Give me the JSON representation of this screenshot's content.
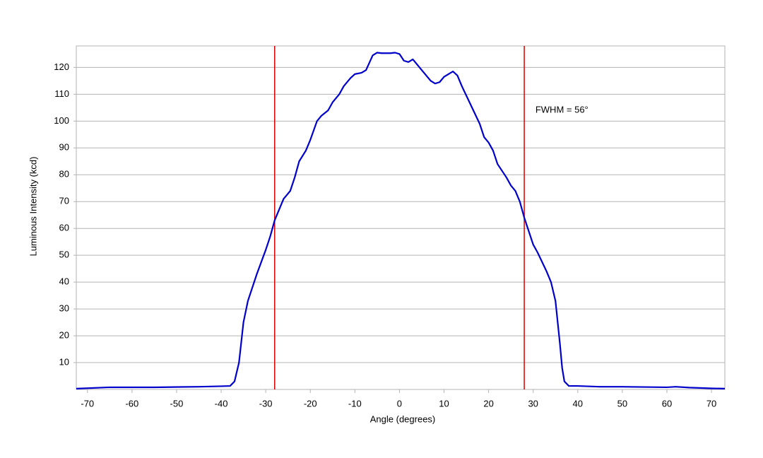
{
  "chart_data": {
    "type": "line",
    "xlabel": "Angle (degrees)",
    "ylabel": "Luminous Intensity (kcd)",
    "x": [
      -72.5,
      -65,
      -55,
      -45,
      -40,
      -38,
      -37,
      -36,
      -35,
      -34,
      -32,
      -30,
      -29,
      -28,
      -27,
      -26,
      -24.5,
      -23.5,
      -22.5,
      -21,
      -20,
      -18.5,
      -17.5,
      -16,
      -15,
      -13.5,
      -12.5,
      -11,
      -10,
      -8.5,
      -7.5,
      -6,
      -5,
      -4,
      -2,
      -1,
      0,
      1,
      2,
      3,
      4,
      5,
      7,
      8,
      9,
      10,
      12,
      13,
      14,
      16,
      18,
      19,
      20,
      21,
      22,
      24,
      25,
      26,
      27,
      28,
      29,
      30,
      31,
      33,
      34,
      35,
      36,
      36.5,
      37,
      38,
      40,
      45,
      50,
      60,
      62,
      65,
      70,
      73
    ],
    "series": [
      {
        "name": "Luminous Intensity",
        "color": "#0000cc",
        "values": [
          0.3,
          0.8,
          0.8,
          1,
          1.2,
          1.3,
          3,
          10,
          25,
          33,
          43,
          52,
          57,
          63,
          67,
          71,
          74,
          79,
          85,
          89,
          93,
          100,
          102,
          104,
          107,
          110,
          113,
          116,
          117.5,
          118,
          119,
          124.5,
          125.5,
          125.3,
          125.3,
          125.5,
          125,
          122.5,
          122,
          123,
          121,
          119,
          115,
          114,
          114.5,
          116.5,
          118.5,
          117,
          113,
          106,
          99,
          94,
          92,
          89,
          84,
          79,
          76,
          74,
          70,
          64,
          59,
          54,
          51,
          44,
          40,
          33,
          17,
          8,
          3,
          1.3,
          1.3,
          1,
          1,
          0.8,
          1,
          0.7,
          0.4,
          0.3
        ]
      }
    ],
    "vlines": [
      -28,
      28
    ],
    "vline_color": "#dd0000",
    "annotation": {
      "text": "FWHM = 56°",
      "x": 30.5,
      "y": 104
    },
    "xlim": [
      -72.5,
      73
    ],
    "xticks": [
      -70,
      -60,
      -50,
      -40,
      -30,
      -20,
      -10,
      0,
      10,
      20,
      30,
      40,
      50,
      60,
      70
    ],
    "ylim": [
      0,
      128
    ],
    "yticks": [
      10,
      20,
      30,
      40,
      50,
      60,
      70,
      80,
      90,
      100,
      110,
      120
    ],
    "grid": true
  }
}
